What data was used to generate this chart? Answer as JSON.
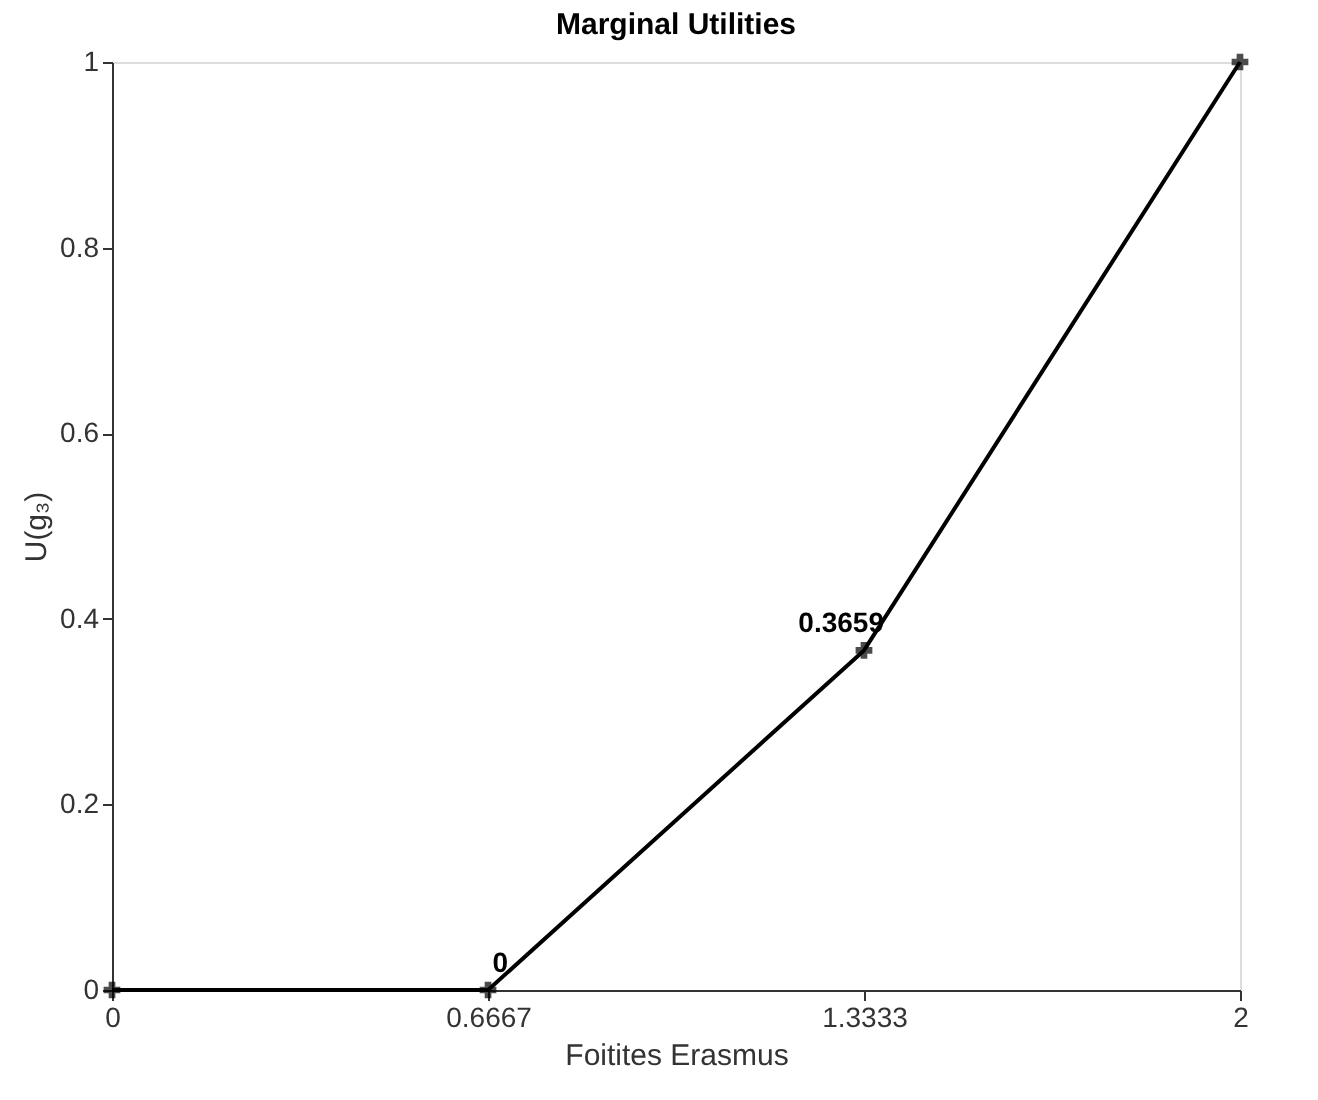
{
  "chart_data": {
    "type": "line",
    "title": "Marginal Utilities",
    "xlabel": "Foitites Erasmus",
    "ylabel": "U(g₃)",
    "x": [
      0,
      0.6667,
      1.3333,
      2
    ],
    "series": [
      {
        "color": "#000000",
        "values": [
          0,
          0,
          0.3659,
          1
        ],
        "value_labels": [
          null,
          "0",
          "0.3659",
          null
        ]
      }
    ],
    "xlim": [
      0,
      2
    ],
    "xticks": [
      0,
      0.6667,
      1.3333,
      2
    ],
    "ylim": [
      0,
      1
    ],
    "yticks": [
      0,
      0.2,
      0.4,
      0.6,
      0.8,
      1
    ],
    "grid": false,
    "marker": "cross",
    "line_style": "solid"
  }
}
